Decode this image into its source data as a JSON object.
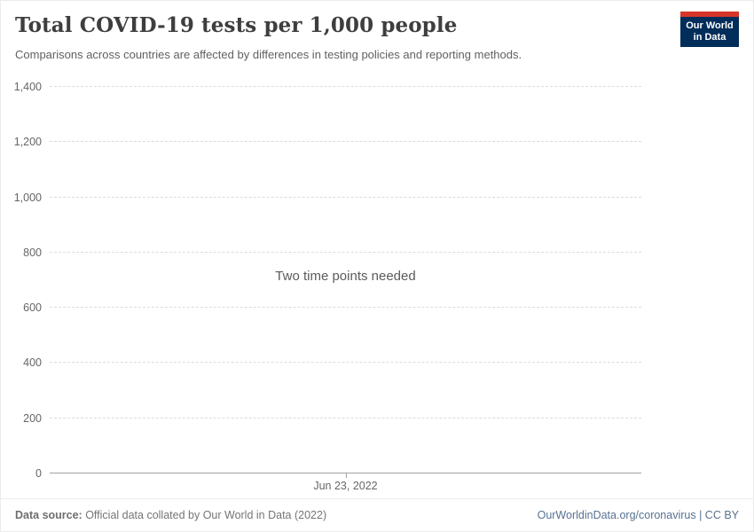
{
  "header": {
    "title": "Total COVID-19 tests per 1,000 people",
    "subtitle": "Comparisons across countries are affected by differences in testing policies and reporting methods.",
    "logo": {
      "line1": "Our World",
      "line2": "in Data",
      "bg_color": "#002d59",
      "bar_color": "#d8352a"
    }
  },
  "chart_data": {
    "type": "line",
    "title": "Total COVID-19 tests per 1,000 people",
    "series": [],
    "x": [],
    "annotation": "Two time points needed",
    "ylim": [
      0,
      1400
    ],
    "yticks": [
      0,
      200,
      400,
      600,
      800,
      1000,
      1200,
      1400
    ],
    "ytick_labels": [
      "0",
      "200",
      "400",
      "600",
      "800",
      "1,000",
      "1,200",
      "1,400"
    ],
    "xtick_labels": [
      "Jun 23, 2022"
    ],
    "grid": true,
    "gridline_style": "dashed",
    "legend_position": "none"
  },
  "footer": {
    "datasource_label": "Data source:",
    "datasource_text": " Official data collated by Our World in Data (2022)",
    "attribution": "OurWorldinData.org/coronavirus | CC BY"
  }
}
